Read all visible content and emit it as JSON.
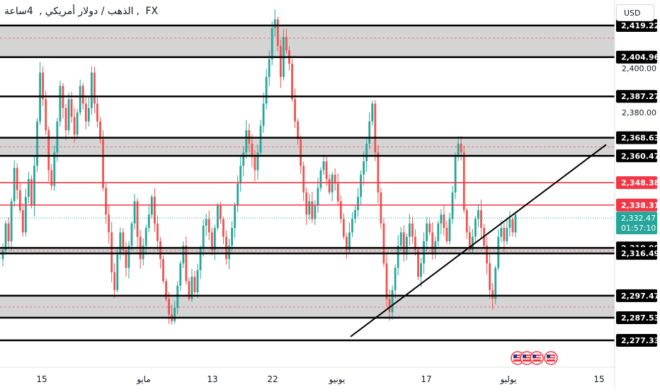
{
  "header": {
    "symbol": "الذهب / دولار أمريكي",
    "interval": "4ساعة",
    "exchange": "FX",
    "currency_button": "USD"
  },
  "colors": {
    "up": "#26a69a",
    "down": "#ef5350",
    "zone_fill": "#d4d4d4",
    "level_black": "#000000",
    "level_red": "#f23645",
    "dotted_red": "#f7525f",
    "current_price_dotted": "#26a69a",
    "trendline": "#000000"
  },
  "chart_data": {
    "type": "candlestick",
    "x_tick_labels": [
      "15",
      "مايو",
      "13",
      "22",
      "يونيو",
      "17",
      "يوليو",
      "15"
    ],
    "y_tick_labels": [
      "2,400.00",
      "2,380.00"
    ],
    "ylim": [
      2274,
      2422
    ],
    "key_levels_black": [
      2419.22,
      2404.96,
      2387.27,
      2368.63,
      2360.47,
      2318.99,
      2316.49,
      2297.47,
      2287.53,
      2277.33
    ],
    "key_levels_red": [
      2348.38,
      2338.31
    ],
    "shaded_zones": [
      [
        2404.96,
        2419.22
      ],
      [
        2360.47,
        2368.63
      ],
      [
        2316.49,
        2318.99
      ],
      [
        2287.53,
        2297.47
      ]
    ],
    "dotted_levels": [
      2413.5,
      2364.5,
      2317.7,
      2292.3
    ],
    "current_price": "2,332.47",
    "countdown": "01:57:10",
    "trendline": {
      "start_price": 2279.0,
      "end_price": 2365.5
    },
    "candle_closes": [
      2318,
      2330,
      2322,
      2340,
      2355,
      2345,
      2336,
      2326,
      2342,
      2350,
      2338,
      2356,
      2376,
      2398,
      2386,
      2372,
      2354,
      2347,
      2362,
      2376,
      2392,
      2382,
      2372,
      2386,
      2378,
      2370,
      2380,
      2392,
      2384,
      2376,
      2382,
      2398,
      2384,
      2376,
      2368,
      2346,
      2334,
      2326,
      2308,
      2300,
      2316,
      2326,
      2318,
      2310,
      2320,
      2330,
      2340,
      2324,
      2314,
      2320,
      2328,
      2334,
      2342,
      2330,
      2322,
      2314,
      2304,
      2296,
      2289,
      2286,
      2292,
      2302,
      2312,
      2320,
      2304,
      2296,
      2306,
      2299,
      2309,
      2319,
      2329,
      2332,
      2326,
      2318,
      2328,
      2338,
      2332,
      2324,
      2314,
      2320,
      2328,
      2338,
      2348,
      2356,
      2362,
      2372,
      2366,
      2360,
      2354,
      2362,
      2374,
      2384,
      2396,
      2404,
      2418,
      2422,
      2410,
      2396,
      2414,
      2408,
      2402,
      2386,
      2376,
      2368,
      2356,
      2344,
      2334,
      2340,
      2332,
      2338,
      2346,
      2354,
      2358,
      2350,
      2344,
      2352,
      2348,
      2340,
      2332,
      2324,
      2318,
      2326,
      2332,
      2336,
      2342,
      2352,
      2358,
      2366,
      2376,
      2384,
      2362,
      2344,
      2330,
      2312,
      2296,
      2290,
      2300,
      2310,
      2320,
      2326,
      2316,
      2324,
      2330,
      2324,
      2318,
      2306,
      2312,
      2322,
      2330,
      2326,
      2316,
      2322,
      2330,
      2334,
      2328,
      2322,
      2332,
      2344,
      2360,
      2366,
      2362,
      2336,
      2326,
      2318,
      2324,
      2332,
      2336,
      2328,
      2320,
      2312,
      2300,
      2296,
      2310,
      2324,
      2328,
      2322,
      2328,
      2332,
      2326,
      2334
    ]
  }
}
